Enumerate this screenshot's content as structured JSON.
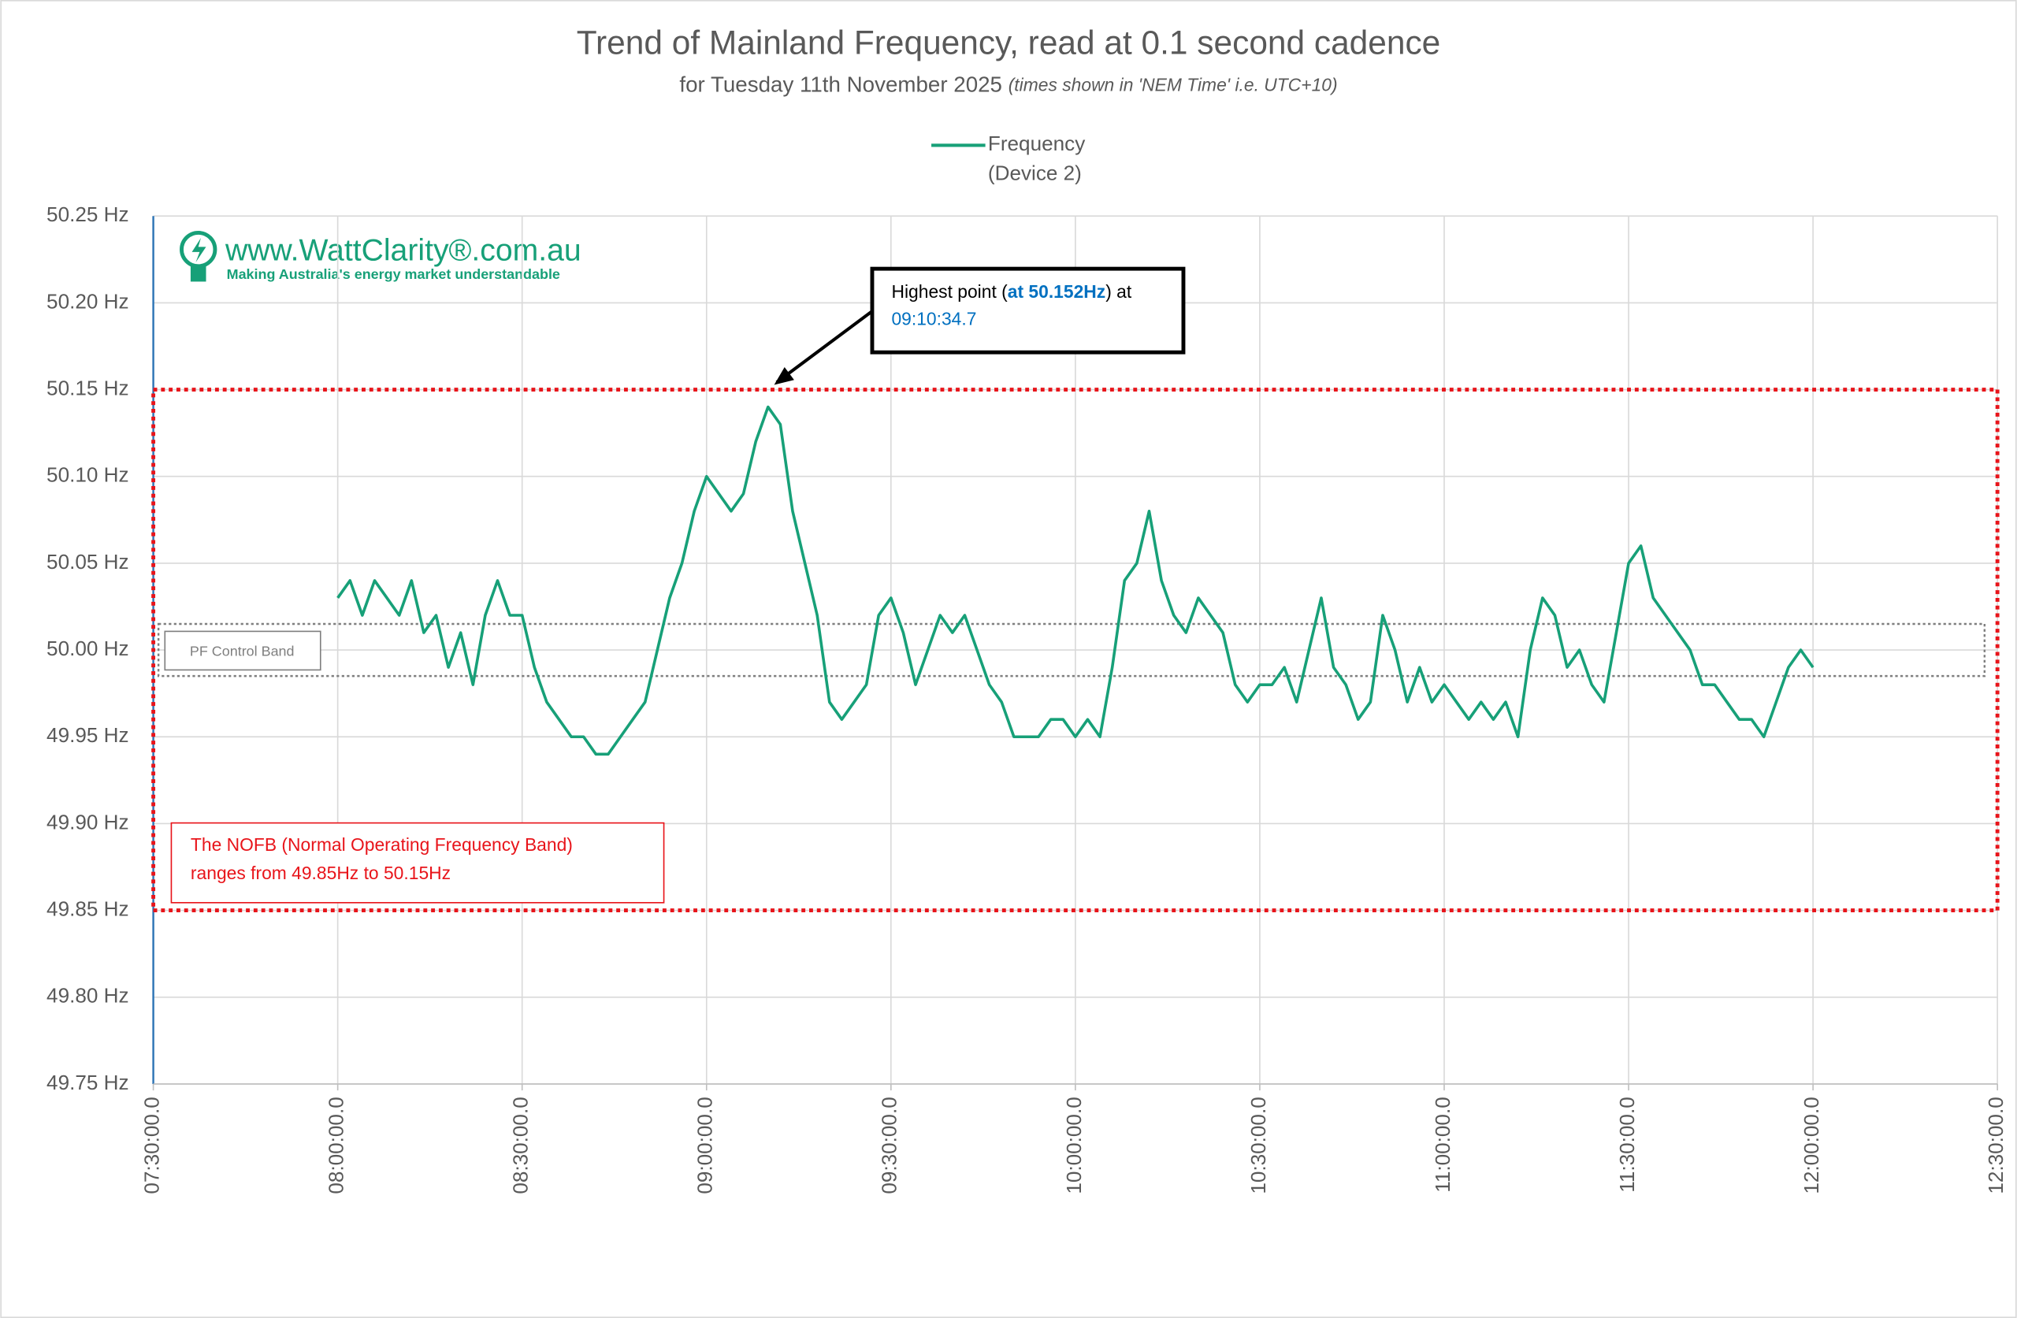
{
  "chart_data": {
    "type": "line",
    "title": "Trend of Mainland Frequency, read at 0.1 second cadence",
    "subtitle": "for Tuesday 11th November 2025",
    "subtitle_note": "(times shown in 'NEM Time' i.e. UTC+10)",
    "logo": {
      "site": "www.WattClarity®.com.au",
      "tagline": "Making Australia's energy market understandable"
    },
    "series": [
      {
        "name": "Frequency (Device 2)",
        "color": "#17a078",
        "x": [
          "08:00:00.0",
          "08:02:00.0",
          "08:04:00.0",
          "08:06:00.0",
          "08:08:00.0",
          "08:10:00.0",
          "08:12:00.0",
          "08:14:00.0",
          "08:16:00.0",
          "08:18:00.0",
          "08:20:00.0",
          "08:22:00.0",
          "08:24:00.0",
          "08:26:00.0",
          "08:28:00.0",
          "08:30:00.0",
          "08:32:00.0",
          "08:34:00.0",
          "08:36:00.0",
          "08:38:00.0",
          "08:40:00.0",
          "08:42:00.0",
          "08:44:00.0",
          "08:46:00.0",
          "08:48:00.0",
          "08:50:00.0",
          "08:52:00.0",
          "08:54:00.0",
          "08:56:00.0",
          "08:58:00.0",
          "09:00:00.0",
          "09:02:00.0",
          "09:04:00.0",
          "09:06:00.0",
          "09:08:00.0",
          "09:10:00.0",
          "09:12:00.0",
          "09:14:00.0",
          "09:16:00.0",
          "09:18:00.0",
          "09:20:00.0",
          "09:22:00.0",
          "09:24:00.0",
          "09:26:00.0",
          "09:28:00.0",
          "09:30:00.0",
          "09:32:00.0",
          "09:34:00.0",
          "09:36:00.0",
          "09:38:00.0",
          "09:40:00.0",
          "09:42:00.0",
          "09:44:00.0",
          "09:46:00.0",
          "09:48:00.0",
          "09:50:00.0",
          "09:52:00.0",
          "09:54:00.0",
          "09:56:00.0",
          "09:58:00.0",
          "10:00:00.0",
          "10:02:00.0",
          "10:04:00.0",
          "10:06:00.0",
          "10:08:00.0",
          "10:10:00.0",
          "10:12:00.0",
          "10:14:00.0",
          "10:16:00.0",
          "10:18:00.0",
          "10:20:00.0",
          "10:22:00.0",
          "10:24:00.0",
          "10:26:00.0",
          "10:28:00.0",
          "10:30:00.0",
          "10:32:00.0",
          "10:34:00.0",
          "10:36:00.0",
          "10:38:00.0",
          "10:40:00.0",
          "10:42:00.0",
          "10:44:00.0",
          "10:46:00.0",
          "10:48:00.0",
          "10:50:00.0",
          "10:52:00.0",
          "10:54:00.0",
          "10:56:00.0",
          "10:58:00.0",
          "11:00:00.0",
          "11:02:00.0",
          "11:04:00.0",
          "11:06:00.0",
          "11:08:00.0",
          "11:10:00.0",
          "11:12:00.0",
          "11:14:00.0",
          "11:16:00.0",
          "11:18:00.0",
          "11:20:00.0",
          "11:22:00.0",
          "11:24:00.0",
          "11:26:00.0",
          "11:28:00.0",
          "11:30:00.0",
          "11:32:00.0",
          "11:34:00.0",
          "11:36:00.0",
          "11:38:00.0",
          "11:40:00.0",
          "11:42:00.0",
          "11:44:00.0",
          "11:46:00.0",
          "11:48:00.0",
          "11:50:00.0",
          "11:52:00.0",
          "11:54:00.0",
          "11:56:00.0",
          "11:58:00.0",
          "12:00:00.0"
        ],
        "values": [
          50.03,
          50.04,
          50.02,
          50.04,
          50.03,
          50.02,
          50.04,
          50.01,
          50.02,
          49.99,
          50.01,
          49.98,
          50.02,
          50.04,
          50.02,
          50.02,
          49.99,
          49.97,
          49.96,
          49.95,
          49.95,
          49.94,
          49.94,
          49.95,
          49.96,
          49.97,
          50.0,
          50.03,
          50.05,
          50.08,
          50.1,
          50.09,
          50.08,
          50.09,
          50.12,
          50.14,
          50.13,
          50.08,
          50.05,
          50.02,
          49.97,
          49.96,
          49.97,
          49.98,
          50.02,
          50.03,
          50.01,
          49.98,
          50.0,
          50.02,
          50.01,
          50.02,
          50.0,
          49.98,
          49.97,
          49.95,
          49.95,
          49.95,
          49.96,
          49.96,
          49.95,
          49.96,
          49.95,
          49.99,
          50.04,
          50.05,
          50.08,
          50.04,
          50.02,
          50.01,
          50.03,
          50.02,
          50.01,
          49.98,
          49.97,
          49.98,
          49.98,
          49.99,
          49.97,
          50.0,
          50.03,
          49.99,
          49.98,
          49.96,
          49.97,
          50.02,
          50.0,
          49.97,
          49.99,
          49.97,
          49.98,
          49.97,
          49.96,
          49.97,
          49.96,
          49.97,
          49.95,
          50.0,
          50.03,
          50.02,
          49.99,
          50.0,
          49.98,
          49.97,
          50.01,
          50.05,
          50.06,
          50.03,
          50.02,
          50.01,
          50.0,
          49.98,
          49.98,
          49.97,
          49.96,
          49.96,
          49.95,
          49.97,
          49.99,
          50.0,
          49.99
        ]
      }
    ],
    "xlim": [
      "07:30:00.0",
      "12:30:00.0"
    ],
    "xticks": [
      "07:30:00.0",
      "08:00:00.0",
      "08:30:00.0",
      "09:00:00.0",
      "09:30:00.0",
      "10:00:00.0",
      "10:30:00.0",
      "11:00:00.0",
      "11:30:00.0",
      "12:00:00.0",
      "12:30:00.0"
    ],
    "ylim": [
      49.75,
      50.25
    ],
    "yticks": [
      {
        "value": 49.75,
        "label": "49.75 Hz"
      },
      {
        "value": 49.8,
        "label": "49.80 Hz"
      },
      {
        "value": 49.85,
        "label": "49.85 Hz"
      },
      {
        "value": 49.9,
        "label": "49.90 Hz"
      },
      {
        "value": 49.95,
        "label": "49.95 Hz"
      },
      {
        "value": 50,
        "label": "50.00 Hz"
      },
      {
        "value": 50.05,
        "label": "50.05 Hz"
      },
      {
        "value": 50.1,
        "label": "50.10 Hz"
      },
      {
        "value": 50.15,
        "label": "50.15 Hz"
      },
      {
        "value": 50.2,
        "label": "50.20 Hz"
      },
      {
        "value": 50.25,
        "label": "50.25 Hz"
      }
    ],
    "grid": true,
    "legend": "top",
    "bands": [
      {
        "label": [
          "PF Control Band"
        ],
        "ymin": 49.985,
        "ymax": 50.015,
        "color": "#7f7f7f"
      },
      {
        "label": [
          "The NOFB  (Normal Operating Frequency Band)",
          "ranges from 49.85Hz to 50.15Hz"
        ],
        "ymin": 49.85,
        "ymax": 50.15,
        "color": "#e8141a"
      }
    ],
    "annotation": {
      "text_before": "Highest point (",
      "value_label": "at 50.152Hz",
      "text_after": ") at",
      "x": "09:10:34.7",
      "value": 50.152
    }
  }
}
